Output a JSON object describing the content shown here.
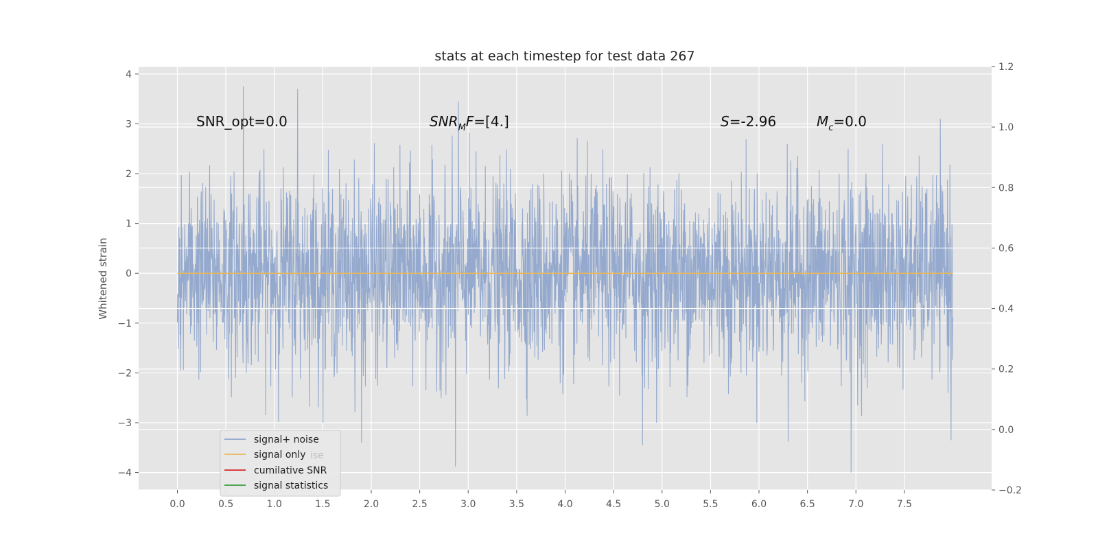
{
  "chart_data": {
    "type": "line",
    "title": "stats at each timestep for test data 267",
    "xlabel": "",
    "ylabel": "Whitened strain",
    "xlim": [
      -0.4,
      8.4
    ],
    "ylim": [
      -4.35,
      4.15
    ],
    "y2lim": [
      -0.2,
      1.2
    ],
    "x_ticks": [
      "0.0",
      "0.5",
      "1.0",
      "1.5",
      "2.0",
      "2.5",
      "3.0",
      "3.5",
      "4.0",
      "4.5",
      "5.0",
      "5.5",
      "6.0",
      "6.5",
      "7.0",
      "7.5"
    ],
    "y_ticks": [
      "4",
      "3",
      "2",
      "1",
      "0",
      "−1",
      "−2",
      "−3",
      "−4"
    ],
    "y2_ticks": [
      "1.2",
      "1.0",
      "0.8",
      "0.6",
      "0.4",
      "0.2",
      "0.0",
      "−0.2"
    ],
    "series": [
      {
        "name": "signal+ noise",
        "color": "#8fa5cb",
        "x_range": [
          0.0,
          8.0
        ],
        "description_values": "dense noise between about -4 and 3.8",
        "peaks": [
          {
            "x": 0.68,
            "y": 3.75
          },
          {
            "x": 1.24,
            "y": 3.7
          },
          {
            "x": 2.9,
            "y": 3.45
          },
          {
            "x": 2.87,
            "y": -3.88
          },
          {
            "x": 6.95,
            "y": -4.0
          },
          {
            "x": 4.8,
            "y": -3.45
          },
          {
            "x": 1.9,
            "y": -3.4
          },
          {
            "x": 6.3,
            "y": -3.38
          },
          {
            "x": 7.98,
            "y": -3.35
          }
        ]
      },
      {
        "name": "signal only",
        "color": "#e8b85a",
        "value": 0.0
      },
      {
        "name": "cumilative SNR",
        "color": "#d62728"
      },
      {
        "name": "signal statistics",
        "color": "#3a9a3a"
      }
    ],
    "hlines_right_axis": [
      0.4,
      0.6
    ],
    "legend_location": "lower-left",
    "annotations": [
      {
        "text": "SNR_opt=0.0"
      },
      {
        "main": "SNR",
        "sub": "M",
        "rest": "F=[4.]"
      },
      {
        "main": "S",
        "rest": "=-2.96"
      },
      {
        "main": "M",
        "sub": "c",
        "rest": "=0.0"
      }
    ],
    "legend_ghost_text": "ise"
  }
}
